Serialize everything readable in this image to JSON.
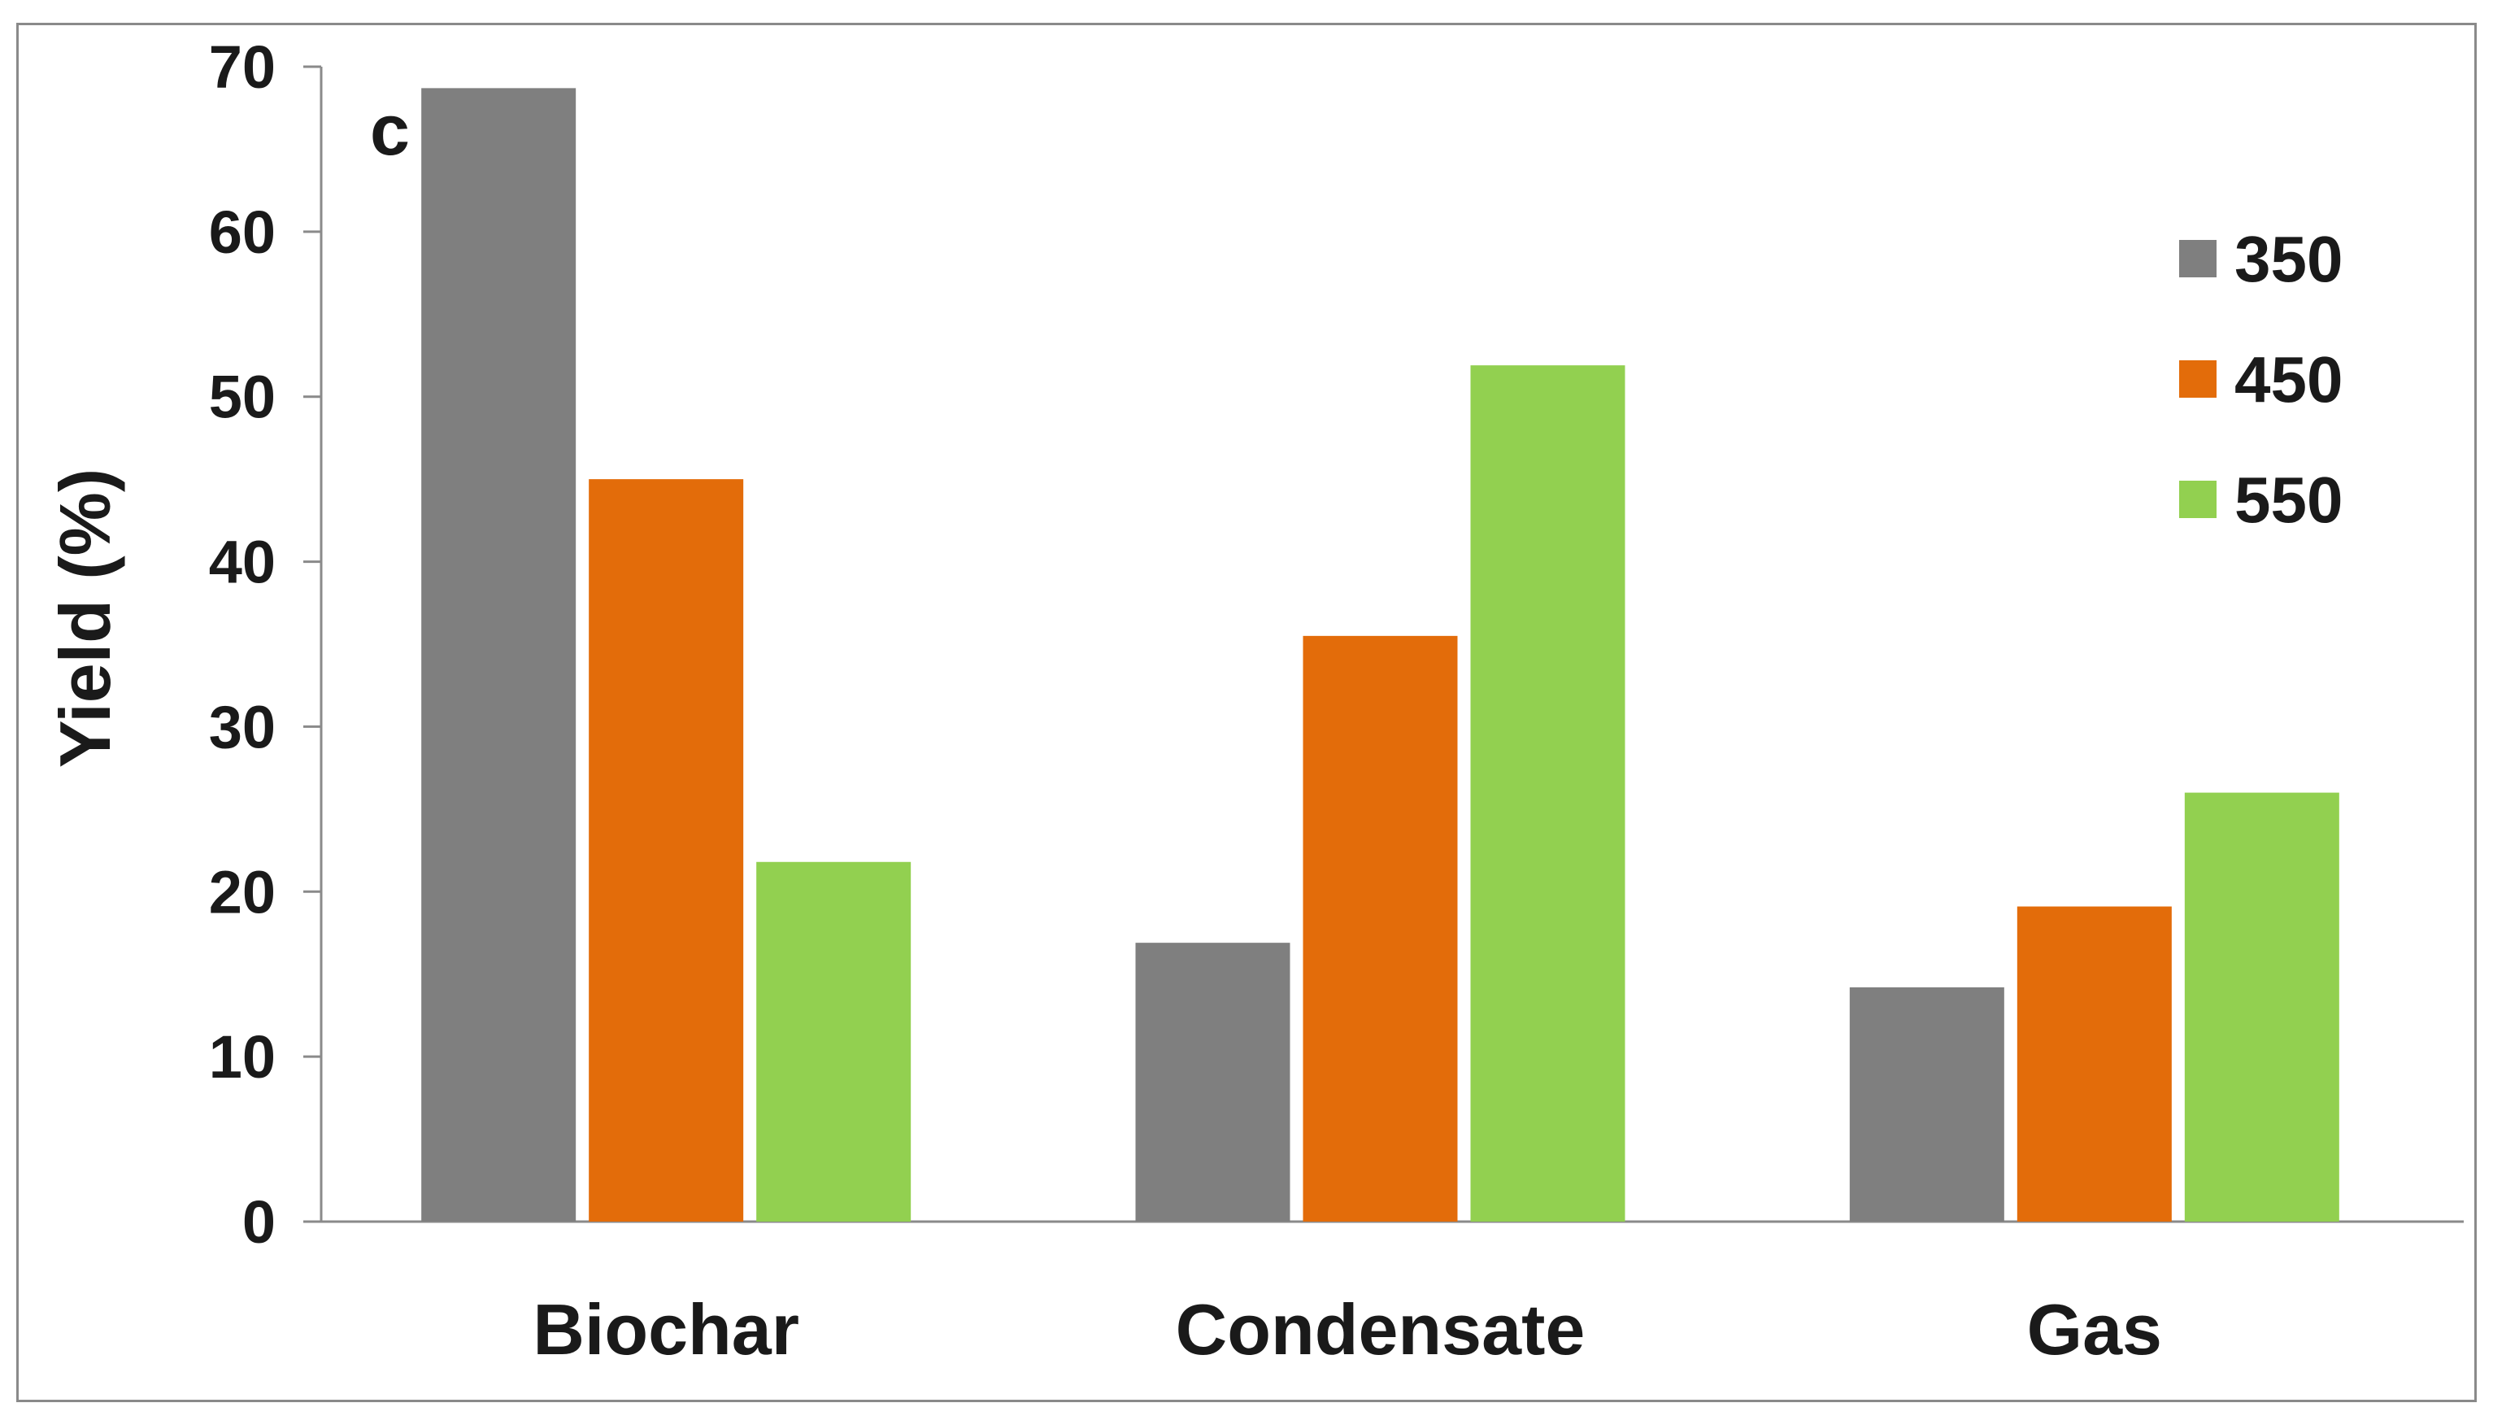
{
  "chart_data": {
    "type": "bar",
    "panel_label": "c",
    "title": "",
    "xlabel": "",
    "ylabel": "Yield (%)",
    "ylim": [
      0,
      70
    ],
    "yticks": [
      0,
      10,
      20,
      30,
      40,
      50,
      60,
      70
    ],
    "categories": [
      "Biochar",
      "Condensate",
      "Gas"
    ],
    "series": [
      {
        "name": "350",
        "color": "#7f7f7f",
        "values": [
          68.7,
          16.9,
          14.2
        ]
      },
      {
        "name": "450",
        "color": "#e36c0a",
        "values": [
          45.0,
          35.5,
          19.1
        ]
      },
      {
        "name": "550",
        "color": "#92d050",
        "values": [
          21.8,
          51.9,
          26.0
        ]
      }
    ],
    "legend_position": "top-right",
    "grid": false
  }
}
